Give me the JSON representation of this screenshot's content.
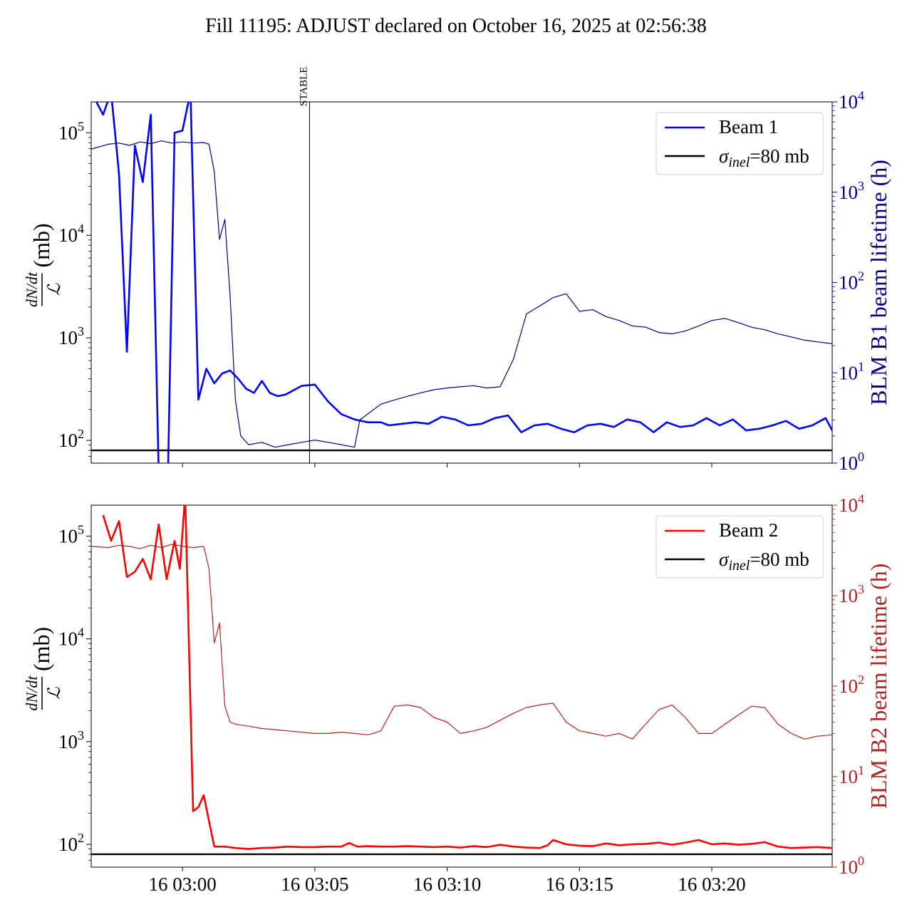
{
  "title": "Fill 11195: ADJUST declared on October 16, 2025 at 02:56:38",
  "chart_data": [
    {
      "type": "line",
      "panel": "top",
      "x_axis": {
        "unit": "minutes since 16 02:57:00",
        "xlim": [
          -0.45,
          27.55
        ],
        "tick_labels": [
          "",
          "",
          "",
          "",
          "",
          ""
        ],
        "tick_values": [
          3,
          8,
          13,
          18,
          23,
          28
        ]
      },
      "left_axis": {
        "ylabel": "(mb)",
        "ylabel_fraction_num": "dN/dt",
        "ylabel_fraction_den": "ℒ",
        "scale": "log",
        "ylim": [
          60,
          200000
        ],
        "ticks": [
          {
            "value": 100,
            "mantissa": "10",
            "exp": "2"
          },
          {
            "value": 1000,
            "mantissa": "10",
            "exp": "3"
          },
          {
            "value": 10000,
            "mantissa": "10",
            "exp": "4"
          },
          {
            "value": 100000,
            "mantissa": "10",
            "exp": "5"
          }
        ]
      },
      "right_axis": {
        "ylabel": "BLM B1 beam lifetime (h)",
        "scale": "log",
        "ylim": [
          1,
          10000
        ],
        "color": "#00008b",
        "ticks": [
          {
            "value": 1,
            "mantissa": "10",
            "exp": "0"
          },
          {
            "value": 10,
            "mantissa": "10",
            "exp": "1"
          },
          {
            "value": 100,
            "mantissa": "10",
            "exp": "2"
          },
          {
            "value": 1000,
            "mantissa": "10",
            "exp": "3"
          },
          {
            "value": 10000,
            "mantissa": "10",
            "exp": "4"
          }
        ]
      },
      "legend": {
        "placement": "upper right",
        "entries": [
          {
            "label": "Beam 1",
            "color": "#0000ff"
          },
          {
            "label_sym": "σ",
            "label_sub": "inel",
            "label_rest": "=80 mb",
            "color": "#000000"
          }
        ]
      },
      "annotation": {
        "label": "STABLE",
        "x": 7.8
      },
      "hline": {
        "y": 80,
        "color": "#000000"
      },
      "series": [
        {
          "name": "Beam 1",
          "axis": "left",
          "color": "#0000ff",
          "x": [
            -0.45,
            0.0,
            0.3,
            0.6,
            0.9,
            1.2,
            1.5,
            1.8,
            2.1,
            2.4,
            2.7,
            3.0,
            3.3,
            3.6,
            3.9,
            4.2,
            4.5,
            4.8,
            5.1,
            5.4,
            5.7,
            6.0,
            6.3,
            6.6,
            6.9,
            7.5,
            8.0,
            8.5,
            9.0,
            9.5,
            10.0,
            10.5,
            10.8,
            11.3,
            11.8,
            12.3,
            12.8,
            13.3,
            13.8,
            14.3,
            14.8,
            15.3,
            15.8,
            16.3,
            16.8,
            17.3,
            17.8,
            18.3,
            18.8,
            19.3,
            19.8,
            20.3,
            20.8,
            21.3,
            21.8,
            22.3,
            22.8,
            23.3,
            23.8,
            24.3,
            24.8,
            25.3,
            25.8,
            26.3,
            26.8,
            27.3,
            27.55
          ],
          "y": [
            250000,
            150000,
            250000,
            40000,
            730,
            75000,
            33000,
            150000,
            50,
            10,
            100000,
            105000,
            250000,
            250,
            500,
            360,
            450,
            480,
            400,
            320,
            290,
            380,
            290,
            270,
            280,
            340,
            350,
            240,
            180,
            160,
            150,
            150,
            140,
            145,
            150,
            145,
            170,
            160,
            140,
            145,
            165,
            175,
            120,
            140,
            145,
            130,
            120,
            140,
            145,
            135,
            160,
            150,
            120,
            150,
            135,
            140,
            165,
            140,
            160,
            125,
            130,
            140,
            155,
            130,
            140,
            165,
            125
          ]
        },
        {
          "name": "",
          "axis": "right",
          "color": "#00008b",
          "x": [
            -0.45,
            0.2,
            0.6,
            1.0,
            1.4,
            1.8,
            2.2,
            2.6,
            3.0,
            3.4,
            3.8,
            4.0,
            4.2,
            4.4,
            4.6,
            4.8,
            5.0,
            5.2,
            5.5,
            6.0,
            6.5,
            7.0,
            7.5,
            8.0,
            8.5,
            9.0,
            9.5,
            9.7,
            10.0,
            10.5,
            11.0,
            11.5,
            12.0,
            12.5,
            13.0,
            13.5,
            14.0,
            14.5,
            15.0,
            15.5,
            16.0,
            16.5,
            17.0,
            17.5,
            18.0,
            18.5,
            19.0,
            19.5,
            20.0,
            20.5,
            21.0,
            21.5,
            22.0,
            22.5,
            23.0,
            23.5,
            24.0,
            24.5,
            25.0,
            25.5,
            26.0,
            26.5,
            27.0,
            27.55
          ],
          "y": [
            3000,
            3400,
            3500,
            3300,
            3600,
            3450,
            3700,
            3500,
            3600,
            3500,
            3550,
            3400,
            1700,
            300,
            500,
            70,
            5,
            2,
            1.6,
            1.7,
            1.5,
            1.6,
            1.7,
            1.8,
            1.7,
            1.6,
            1.5,
            3,
            3.5,
            4.5,
            5,
            5.5,
            6,
            6.5,
            6.8,
            7,
            7.2,
            6.8,
            7,
            14,
            45,
            55,
            68,
            75,
            48,
            50,
            42,
            38,
            33,
            32,
            28,
            27,
            29,
            33,
            38,
            40,
            36,
            32,
            30,
            27,
            25,
            23,
            22,
            21
          ]
        }
      ]
    },
    {
      "type": "line",
      "panel": "bottom",
      "x_axis": {
        "unit": "minutes since 16 02:57:00",
        "xlim": [
          -0.45,
          27.55
        ],
        "tick_labels": [
          "16 03:00",
          "16 03:05",
          "16 03:10",
          "16 03:15",
          "16 03:20"
        ],
        "tick_values": [
          3,
          8,
          13,
          18,
          23
        ]
      },
      "left_axis": {
        "ylabel": "(mb)",
        "ylabel_fraction_num": "dN/dt",
        "ylabel_fraction_den": "ℒ",
        "scale": "log",
        "ylim": [
          60,
          200000
        ],
        "ticks": [
          {
            "value": 100,
            "mantissa": "10",
            "exp": "2"
          },
          {
            "value": 1000,
            "mantissa": "10",
            "exp": "3"
          },
          {
            "value": 10000,
            "mantissa": "10",
            "exp": "4"
          },
          {
            "value": 100000,
            "mantissa": "10",
            "exp": "5"
          }
        ]
      },
      "right_axis": {
        "ylabel": "BLM B2 beam lifetime (h)",
        "scale": "log",
        "ylim": [
          1,
          10000
        ],
        "color": "#b22222",
        "ticks": [
          {
            "value": 1,
            "mantissa": "10",
            "exp": "0"
          },
          {
            "value": 10,
            "mantissa": "10",
            "exp": "1"
          },
          {
            "value": 100,
            "mantissa": "10",
            "exp": "2"
          },
          {
            "value": 1000,
            "mantissa": "10",
            "exp": "3"
          },
          {
            "value": 10000,
            "mantissa": "10",
            "exp": "4"
          }
        ]
      },
      "legend": {
        "placement": "upper right",
        "entries": [
          {
            "label": "Beam 2",
            "color": "#ff0000"
          },
          {
            "label_sym": "σ",
            "label_sub": "inel",
            "label_rest": "=80 mb",
            "color": "#000000"
          }
        ]
      },
      "hline": {
        "y": 80,
        "color": "#000000"
      },
      "series": [
        {
          "name": "Beam 2",
          "axis": "left",
          "color": "#ff0000",
          "x": [
            0.0,
            0.3,
            0.6,
            0.9,
            1.2,
            1.5,
            1.8,
            2.1,
            2.4,
            2.7,
            2.9,
            3.1,
            3.4,
            3.6,
            3.8,
            4.2,
            4.6,
            5.0,
            5.5,
            6.0,
            6.5,
            7.0,
            7.5,
            8.0,
            8.5,
            9.0,
            9.3,
            9.6,
            10.0,
            10.5,
            11.0,
            11.5,
            12.0,
            12.5,
            13.0,
            13.5,
            14.0,
            14.5,
            15.0,
            15.5,
            16.0,
            16.5,
            16.8,
            17.0,
            17.5,
            18.0,
            18.5,
            19.0,
            19.5,
            20.0,
            20.5,
            21.0,
            21.5,
            22.0,
            22.5,
            23.0,
            23.5,
            24.0,
            24.5,
            25.0,
            25.5,
            26.0,
            26.5,
            27.0,
            27.55
          ],
          "y": [
            160000,
            90000,
            140000,
            40000,
            45000,
            60000,
            38000,
            130000,
            38000,
            90000,
            48000,
            250000,
            210,
            230,
            300,
            95,
            95,
            92,
            90,
            92,
            93,
            95,
            94,
            94,
            95,
            95,
            103,
            95,
            96,
            95,
            95,
            96,
            95,
            94,
            95,
            93,
            96,
            94,
            99,
            95,
            93,
            92,
            98,
            110,
            100,
            97,
            96,
            102,
            98,
            100,
            101,
            104,
            99,
            104,
            110,
            100,
            102,
            99,
            101,
            105,
            95,
            92,
            93,
            94,
            92
          ]
        },
        {
          "name": "",
          "axis": "right",
          "color": "#b22222",
          "x": [
            -0.45,
            0.2,
            0.6,
            1.0,
            1.4,
            1.8,
            2.2,
            2.6,
            3.0,
            3.4,
            3.8,
            4.0,
            4.2,
            4.4,
            4.6,
            4.8,
            5.0,
            5.5,
            6.0,
            6.5,
            7.0,
            7.5,
            8.0,
            8.5,
            9.0,
            9.5,
            10.0,
            10.2,
            10.5,
            11.0,
            11.5,
            12.0,
            12.5,
            13.0,
            13.5,
            14.0,
            14.5,
            15.0,
            15.5,
            16.0,
            16.5,
            17.0,
            17.5,
            18.0,
            18.5,
            19.0,
            19.5,
            20.0,
            20.5,
            21.0,
            21.5,
            22.0,
            22.5,
            23.0,
            23.5,
            24.0,
            24.5,
            25.0,
            25.5,
            26.0,
            26.5,
            27.0,
            27.55
          ],
          "y": [
            3500,
            3400,
            3600,
            3500,
            3300,
            3600,
            3400,
            3700,
            3500,
            3400,
            3500,
            2000,
            300,
            500,
            60,
            40,
            38,
            36,
            34,
            33,
            32,
            31,
            30,
            30,
            31,
            30,
            29,
            30,
            32,
            60,
            62,
            58,
            45,
            40,
            30,
            32,
            35,
            42,
            50,
            58,
            62,
            65,
            40,
            32,
            30,
            28,
            30,
            26,
            38,
            55,
            62,
            45,
            30,
            30,
            38,
            48,
            60,
            58,
            38,
            30,
            26,
            28,
            29
          ]
        }
      ]
    }
  ]
}
